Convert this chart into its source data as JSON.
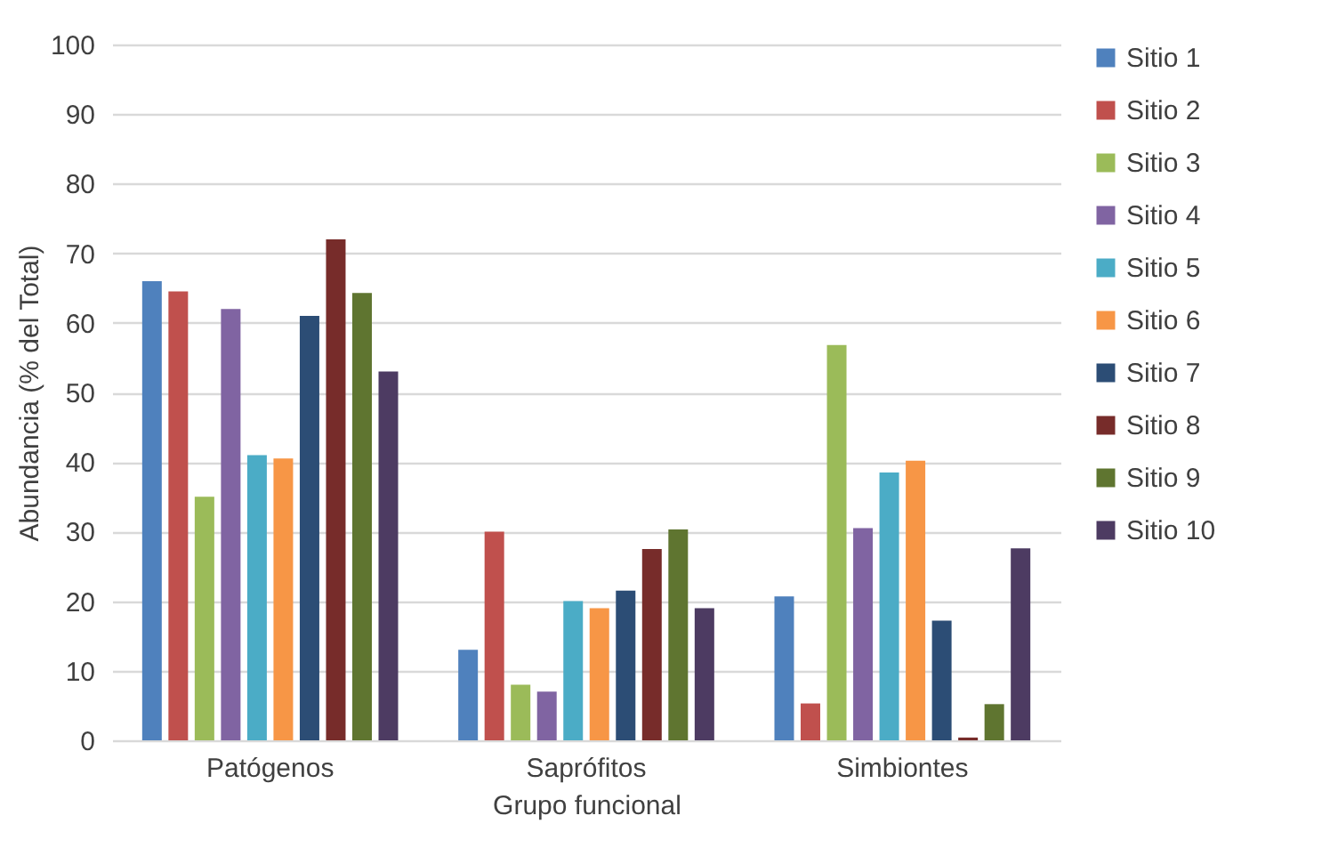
{
  "chart_data": {
    "type": "bar",
    "xlabel": "Grupo funcional",
    "ylabel": "Abundancia (% del Total)",
    "categories": [
      "Patógenos",
      "Saprófitos",
      "Simbiontes"
    ],
    "series": [
      {
        "name": "Sitio 1",
        "color": "#4f81bd",
        "values": [
          66,
          13,
          20.7
        ]
      },
      {
        "name": "Sitio 2",
        "color": "#c0504d",
        "values": [
          64.5,
          30,
          5.3
        ]
      },
      {
        "name": "Sitio 3",
        "color": "#9bbb59",
        "values": [
          35,
          8,
          56.8
        ]
      },
      {
        "name": "Sitio 4",
        "color": "#8064a2",
        "values": [
          62,
          7,
          30.5
        ]
      },
      {
        "name": "Sitio 5",
        "color": "#4bacc6",
        "values": [
          41,
          20,
          38.5
        ]
      },
      {
        "name": "Sitio 6",
        "color": "#f79646",
        "values": [
          40.5,
          19,
          40.2
        ]
      },
      {
        "name": "Sitio 7",
        "color": "#2c4d75",
        "values": [
          61,
          21.5,
          17.2
        ]
      },
      {
        "name": "Sitio 8",
        "color": "#772c2a",
        "values": [
          72,
          27.5,
          0.4
        ]
      },
      {
        "name": "Sitio 9",
        "color": "#5f7530",
        "values": [
          64.3,
          30.3,
          5.2
        ]
      },
      {
        "name": "Sitio 10",
        "color": "#4d3b62",
        "values": [
          53,
          19,
          27.6
        ]
      }
    ],
    "ylim": [
      0,
      100
    ],
    "yticks": [
      0,
      10,
      20,
      30,
      40,
      50,
      60,
      70,
      80,
      90,
      100
    ],
    "grid": "y",
    "legend": "right"
  }
}
